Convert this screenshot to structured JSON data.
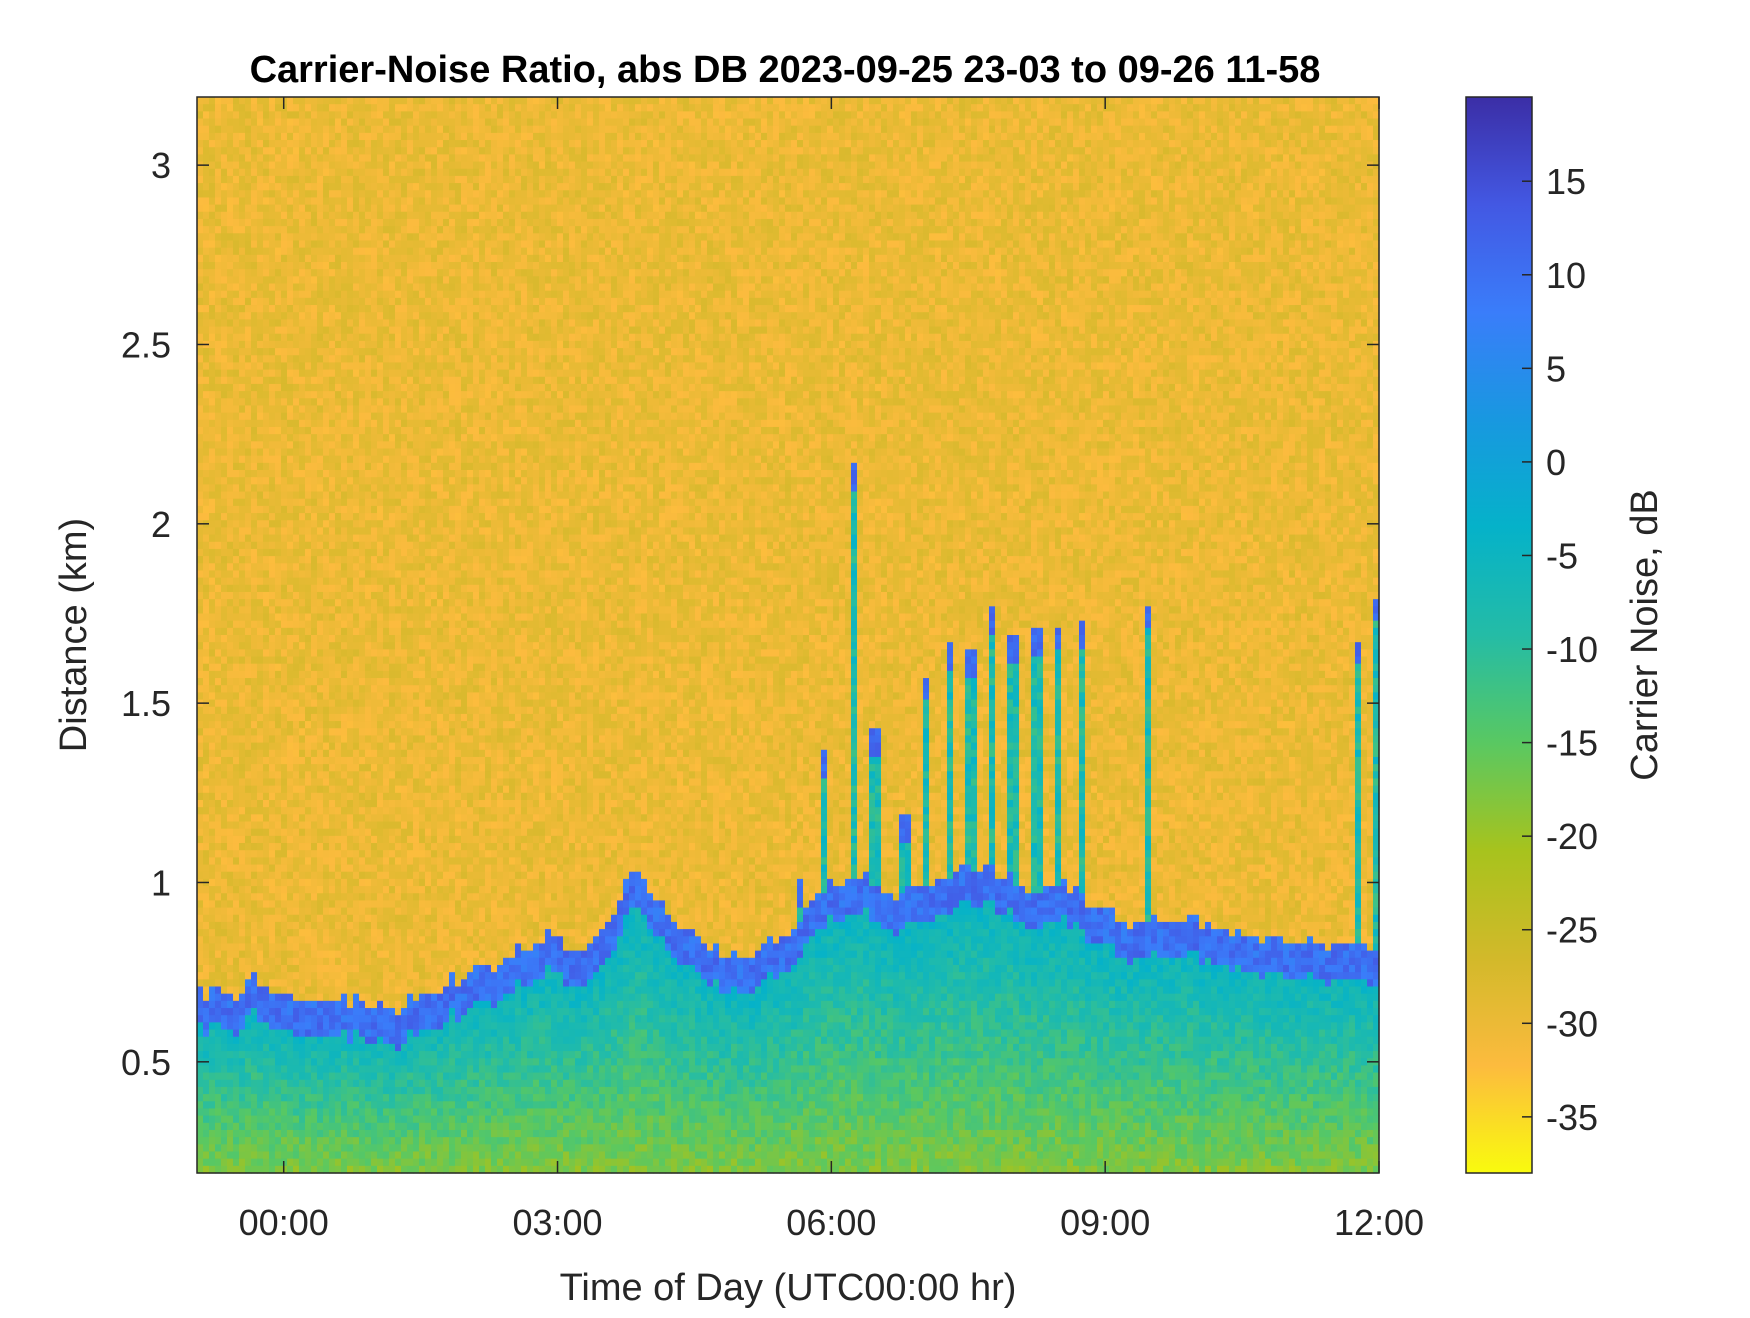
{
  "chart_data": {
    "type": "heatmap",
    "title": "Carrier-Noise Ratio, abs DB 2023-09-25 23-03 to 09-26 11-58",
    "xlabel": "Time of Day (UTC00:00 hr)",
    "ylabel": "Distance (km)",
    "colorbar_label": "Carrier Noise, dB",
    "x_range_hours": [
      -0.95,
      12.0
    ],
    "y_range_km": [
      0.19,
      3.19
    ],
    "color_range_db": [
      -38,
      19.5
    ],
    "x_ticks": [
      0,
      3,
      6,
      9,
      12
    ],
    "x_tick_labels": [
      "00:00",
      "03:00",
      "06:00",
      "09:00",
      "12:00"
    ],
    "y_ticks": [
      0.5,
      1,
      1.5,
      2,
      2.5,
      3
    ],
    "y_tick_labels": [
      "0.5",
      "1",
      "1.5",
      "2",
      "2.5",
      "3"
    ],
    "colorbar_ticks": [
      15,
      10,
      5,
      0,
      -5,
      -10,
      -15,
      -20,
      -25,
      -30,
      -35
    ],
    "colorbar_tick_labels": [
      "15",
      "10",
      "5",
      "0",
      "-5",
      "-10",
      "-15",
      "-20",
      "-25",
      "-30",
      "-35"
    ],
    "colormap": [
      "#f9fb0e",
      "#fcbb3e",
      "#d2b92a",
      "#a7c31d",
      "#59c862",
      "#24bca6",
      "#05b2c9",
      "#1898e0",
      "#3a7dfa",
      "#4358e3",
      "#3b2ea6"
    ],
    "background_db": -30,
    "near_field_db": -13,
    "layer_peak_db": 13,
    "layer_top_km": {
      "hours": [
        -0.95,
        -0.5,
        -0.3,
        -0.1,
        0.5,
        1.2,
        1.8,
        2.3,
        2.9,
        3.2,
        3.5,
        3.8,
        4.3,
        4.8,
        5.2,
        5.6,
        5.9,
        6.3,
        6.7,
        7.1,
        7.5,
        7.8,
        8.2,
        8.6,
        9.0,
        9.4,
        9.8,
        10.5,
        11.2,
        11.9,
        12.0
      ],
      "km": [
        0.65,
        0.63,
        0.69,
        0.63,
        0.63,
        0.6,
        0.67,
        0.72,
        0.81,
        0.75,
        0.8,
        0.98,
        0.85,
        0.75,
        0.75,
        0.83,
        0.93,
        0.98,
        0.9,
        0.95,
        1.0,
        0.98,
        0.92,
        0.94,
        0.86,
        0.84,
        0.86,
        0.8,
        0.79,
        0.78,
        0.78
      ]
    },
    "plumes": [
      {
        "hour": 5.65,
        "top_km": 1.01
      },
      {
        "hour": 5.9,
        "top_km": 1.37
      },
      {
        "hour": 6.25,
        "top_km": 2.17
      },
      {
        "hour": 6.48,
        "top_km": 1.43
      },
      {
        "hour": 6.8,
        "top_km": 1.2
      },
      {
        "hour": 7.05,
        "top_km": 1.58
      },
      {
        "hour": 7.3,
        "top_km": 1.67
      },
      {
        "hour": 7.52,
        "top_km": 1.65
      },
      {
        "hour": 7.75,
        "top_km": 1.77
      },
      {
        "hour": 8.0,
        "top_km": 1.7
      },
      {
        "hour": 8.25,
        "top_km": 1.71
      },
      {
        "hour": 8.5,
        "top_km": 1.72
      },
      {
        "hour": 8.75,
        "top_km": 1.73
      },
      {
        "hour": 9.48,
        "top_km": 1.78
      },
      {
        "hour": 11.78,
        "top_km": 1.68
      },
      {
        "hour": 12.0,
        "top_km": 1.8
      }
    ]
  }
}
